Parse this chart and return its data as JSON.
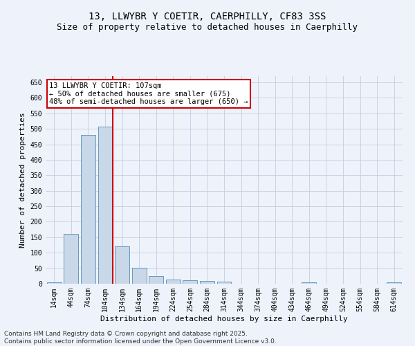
{
  "title_line1": "13, LLWYBR Y COETIR, CAERPHILLY, CF83 3SS",
  "title_line2": "Size of property relative to detached houses in Caerphilly",
  "xlabel": "Distribution of detached houses by size in Caerphilly",
  "ylabel": "Number of detached properties",
  "categories": [
    "14sqm",
    "44sqm",
    "74sqm",
    "104sqm",
    "134sqm",
    "164sqm",
    "194sqm",
    "224sqm",
    "254sqm",
    "284sqm",
    "314sqm",
    "344sqm",
    "374sqm",
    "404sqm",
    "434sqm",
    "464sqm",
    "494sqm",
    "524sqm",
    "554sqm",
    "584sqm",
    "614sqm"
  ],
  "values": [
    5,
    160,
    480,
    508,
    120,
    52,
    25,
    14,
    12,
    10,
    7,
    0,
    0,
    0,
    0,
    5,
    0,
    0,
    0,
    0,
    5
  ],
  "bar_color": "#c8d8e8",
  "bar_edge_color": "#6699bb",
  "red_line_color": "#cc0000",
  "red_line_index": 3,
  "annotation_line1": "13 LLWYBR Y COETIR: 107sqm",
  "annotation_line2": "← 50% of detached houses are smaller (675)",
  "annotation_line3": "48% of semi-detached houses are larger (650) →",
  "annotation_box_facecolor": "#ffffff",
  "annotation_box_edgecolor": "#cc0000",
  "ylim_max": 670,
  "yticks": [
    0,
    50,
    100,
    150,
    200,
    250,
    300,
    350,
    400,
    450,
    500,
    550,
    600,
    650
  ],
  "background_color": "#eef2fb",
  "grid_color": "#c5cde0",
  "title_fontsize": 10,
  "subtitle_fontsize": 9,
  "axis_label_fontsize": 8,
  "tick_fontsize": 7,
  "annotation_fontsize": 7.5,
  "footer_fontsize": 6.5,
  "footer_line1": "Contains HM Land Registry data © Crown copyright and database right 2025.",
  "footer_line2": "Contains public sector information licensed under the Open Government Licence v3.0."
}
